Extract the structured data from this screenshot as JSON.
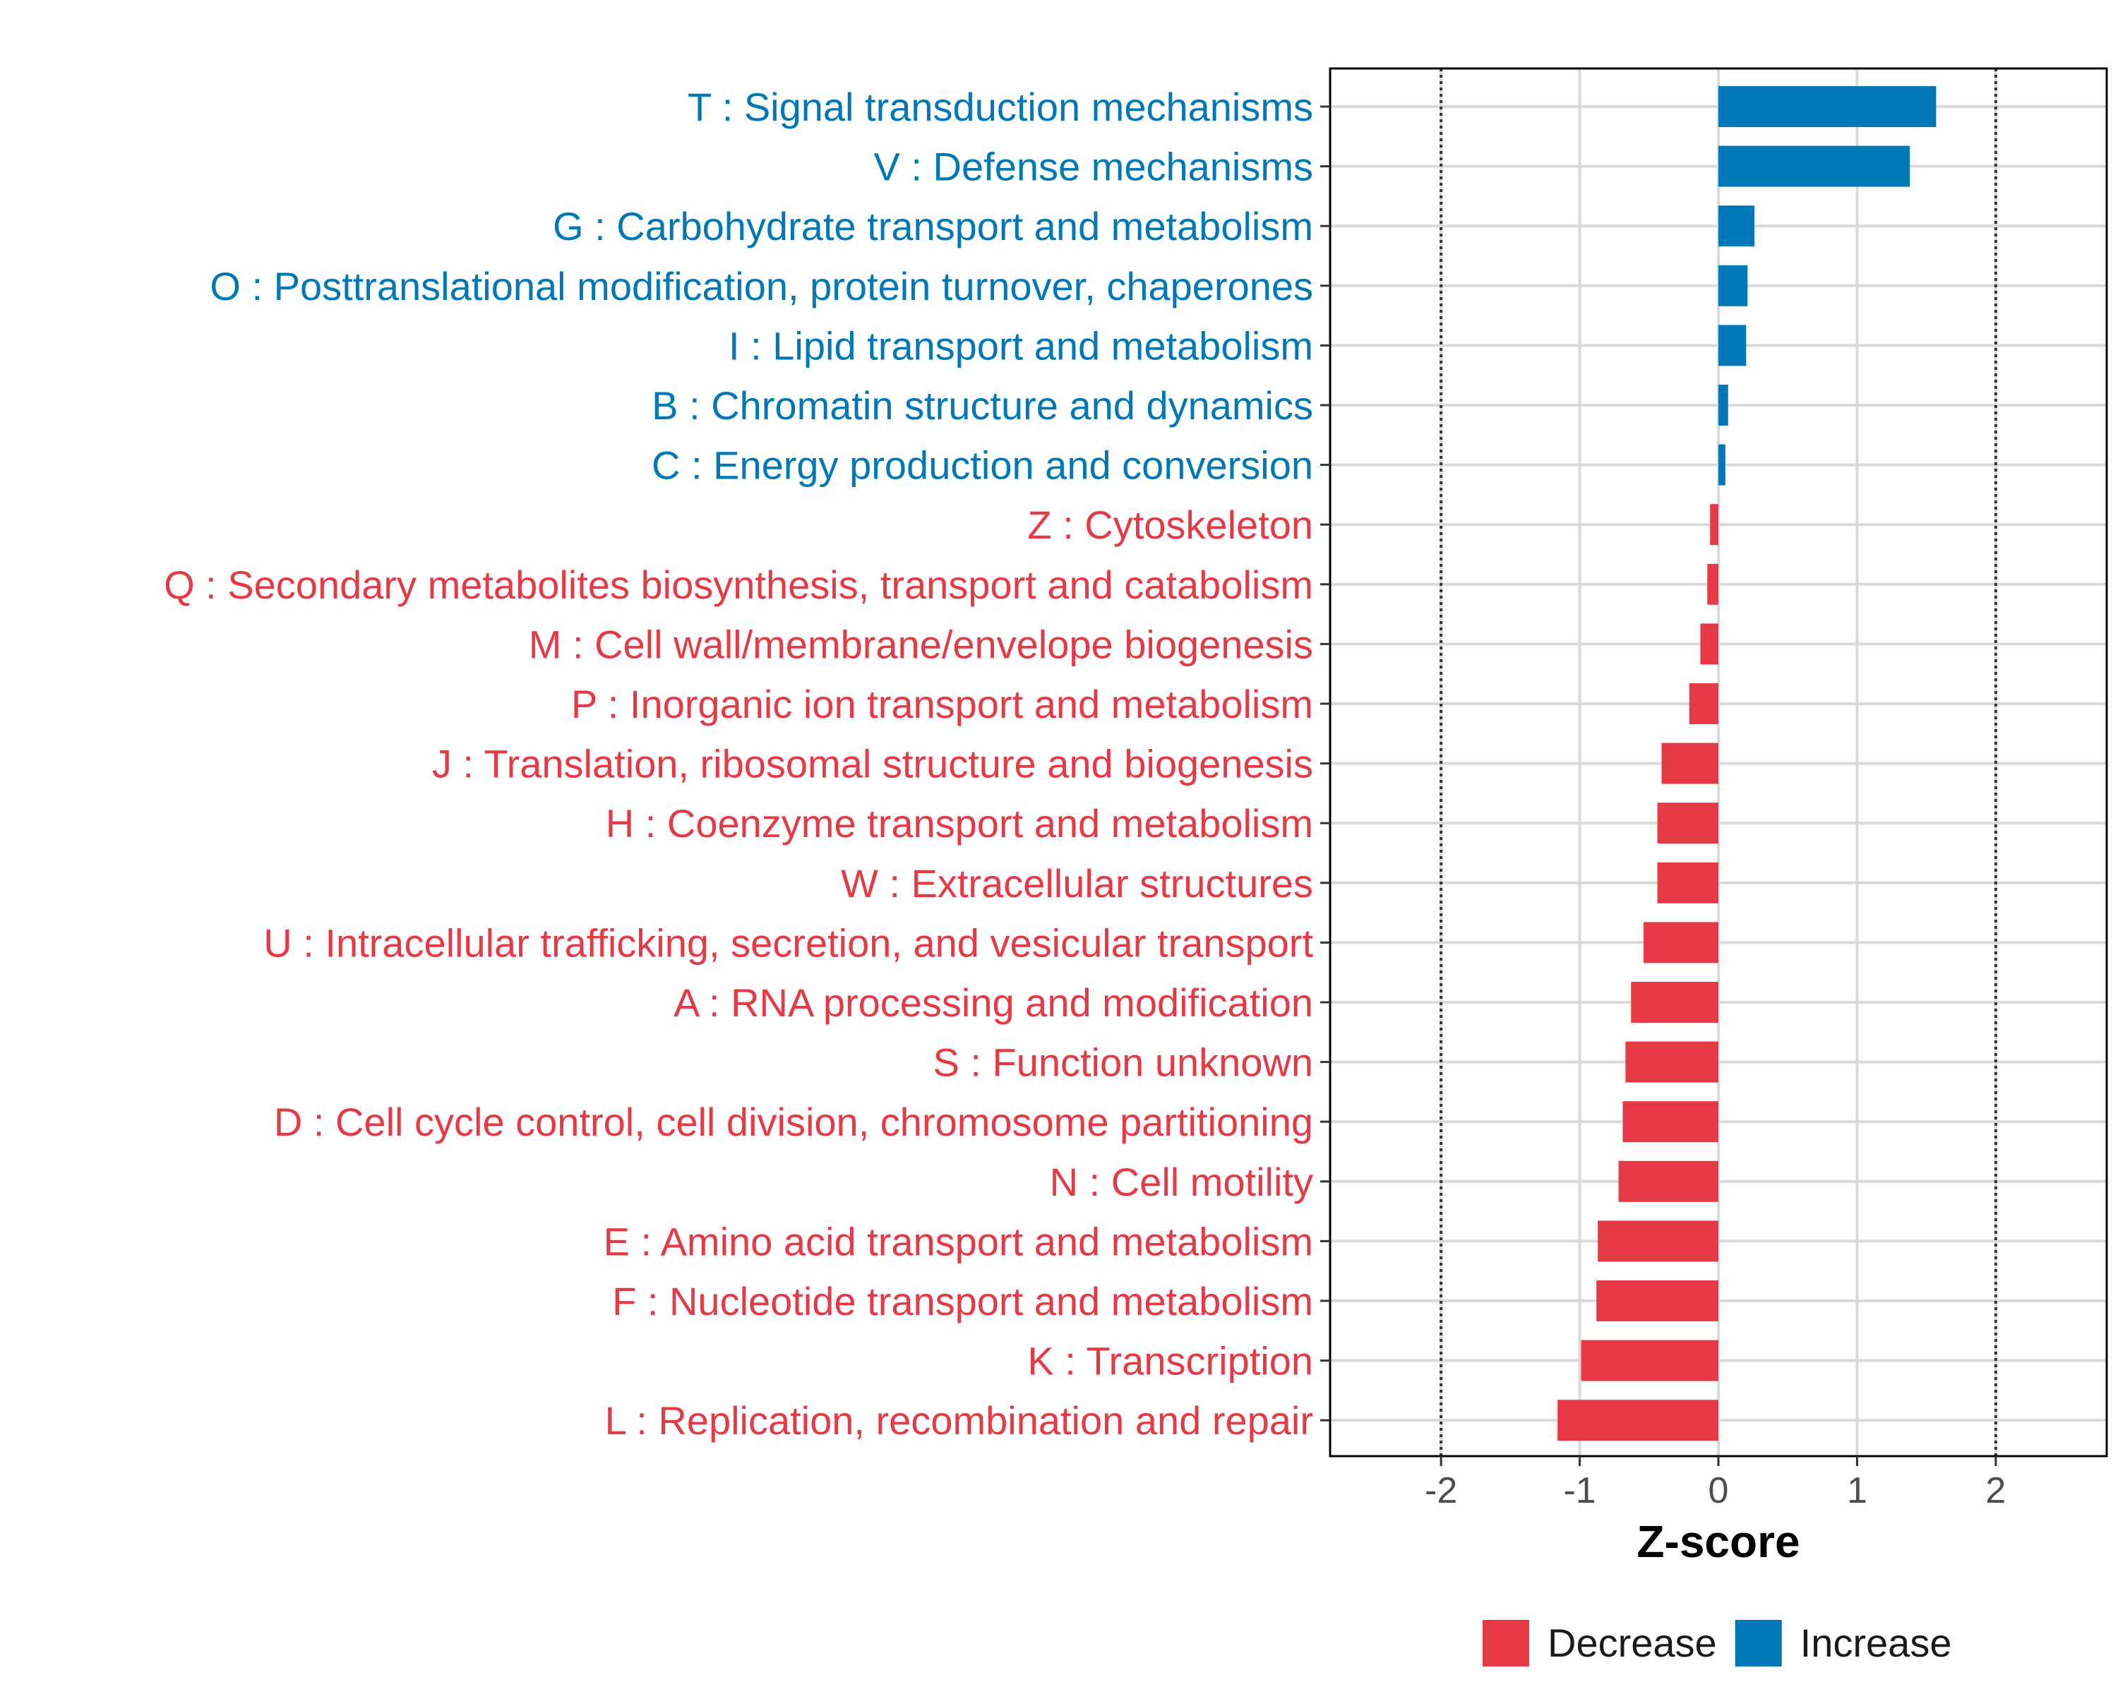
{
  "chart_data": {
    "type": "bar",
    "orientation": "horizontal",
    "xlabel": "Z-score",
    "xlim": [
      -2.8,
      2.8
    ],
    "x_ticks": [
      -2,
      -1,
      0,
      1,
      2
    ],
    "x_tick_labels": [
      "-2",
      "-1",
      "0",
      "1",
      "2"
    ],
    "reference_lines": [
      -2,
      2
    ],
    "grid": true,
    "legend": {
      "placement": "bottom",
      "entries": [
        {
          "label": "Decrease",
          "color": "#e63946"
        },
        {
          "label": "Increase",
          "color": "#0077b6"
        }
      ]
    },
    "categories": [
      {
        "label": "T : Signal transduction mechanisms",
        "value": 1.57,
        "group": "Increase"
      },
      {
        "label": "V : Defense mechanisms",
        "value": 1.38,
        "group": "Increase"
      },
      {
        "label": "G : Carbohydrate transport and metabolism",
        "value": 0.26,
        "group": "Increase"
      },
      {
        "label": "O : Posttranslational modification, protein turnover, chaperones",
        "value": 0.21,
        "group": "Increase"
      },
      {
        "label": "I : Lipid transport and metabolism",
        "value": 0.2,
        "group": "Increase"
      },
      {
        "label": "B : Chromatin structure and dynamics",
        "value": 0.07,
        "group": "Increase"
      },
      {
        "label": "C : Energy production and conversion",
        "value": 0.05,
        "group": "Increase"
      },
      {
        "label": "Z : Cytoskeleton",
        "value": -0.06,
        "group": "Decrease"
      },
      {
        "label": "Q : Secondary metabolites biosynthesis, transport and catabolism",
        "value": -0.08,
        "group": "Decrease"
      },
      {
        "label": "M : Cell wall/membrane/envelope biogenesis",
        "value": -0.13,
        "group": "Decrease"
      },
      {
        "label": "P : Inorganic ion transport and metabolism",
        "value": -0.21,
        "group": "Decrease"
      },
      {
        "label": "J : Translation, ribosomal structure and biogenesis",
        "value": -0.41,
        "group": "Decrease"
      },
      {
        "label": "H : Coenzyme transport and metabolism",
        "value": -0.44,
        "group": "Decrease"
      },
      {
        "label": "W : Extracellular structures",
        "value": -0.44,
        "group": "Decrease"
      },
      {
        "label": "U : Intracellular trafficking, secretion, and vesicular transport",
        "value": -0.54,
        "group": "Decrease"
      },
      {
        "label": "A : RNA processing and modification",
        "value": -0.63,
        "group": "Decrease"
      },
      {
        "label": "S : Function unknown",
        "value": -0.67,
        "group": "Decrease"
      },
      {
        "label": "D : Cell cycle control, cell division, chromosome partitioning",
        "value": -0.69,
        "group": "Decrease"
      },
      {
        "label": "N : Cell motility",
        "value": -0.72,
        "group": "Decrease"
      },
      {
        "label": "E : Amino acid transport and metabolism",
        "value": -0.87,
        "group": "Decrease"
      },
      {
        "label": "F : Nucleotide transport and metabolism",
        "value": -0.88,
        "group": "Decrease"
      },
      {
        "label": "K : Transcription",
        "value": -0.99,
        "group": "Decrease"
      },
      {
        "label": "L : Replication, recombination and repair",
        "value": -1.16,
        "group": "Decrease"
      }
    ]
  }
}
